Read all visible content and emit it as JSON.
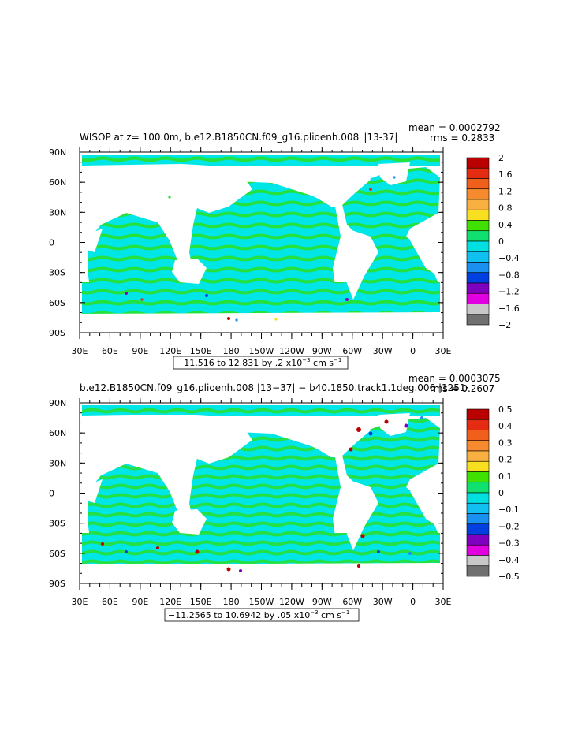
{
  "panels": [
    {
      "title": "WISOP at z= 100.0m, b.e12.B1850CN.f09_g16.plioenh.008   |13-37|",
      "mean_text": "mean = 0.0002792",
      "rms_text": "rms = 0.2833",
      "range_text_main": "−11.516 to 12.831 by .2 x10",
      "range_exp": "−3",
      "range_unit": " cm s",
      "range_unit_exp": "−1",
      "lat_labels": [
        "90N",
        "60N",
        "30N",
        "0",
        "30S",
        "60S",
        "90S"
      ],
      "lon_labels": [
        "30E",
        "60E",
        "90E",
        "120E",
        "150E",
        "180",
        "150W",
        "120W",
        "90W",
        "60W",
        "30W",
        "0",
        "30E"
      ],
      "colorbar_labels": [
        "2",
        "1.6",
        "1.2",
        "0.8",
        "0.4",
        "0",
        "−0.4",
        "−0.8",
        "−1.2",
        "−1.6",
        "−2"
      ]
    },
    {
      "title": "b.e12.B1850CN.f09_g16.plioenh.008 |13−37| − b40.1850.track1.1deg.006 |1251·",
      "mean_text": "mean = 0.0003075",
      "rms_text": "rms = 0.2607",
      "range_text_main": "−11.2565 to 10.6942 by .05 x10",
      "range_exp": "−3",
      "range_unit": " cm s",
      "range_unit_exp": "−1",
      "lat_labels": [
        "90N",
        "60N",
        "30N",
        "0",
        "30S",
        "60S",
        "90S"
      ],
      "lon_labels": [
        "30E",
        "60E",
        "90E",
        "120E",
        "150E",
        "180",
        "150W",
        "120W",
        "90W",
        "60W",
        "30W",
        "0",
        "30E"
      ],
      "colorbar_labels": [
        "0.5",
        "0.4",
        "0.3",
        "0.2",
        "0.1",
        "0",
        "−0.1",
        "−0.2",
        "−0.3",
        "−0.4",
        "−0.5"
      ]
    }
  ],
  "colors": {
    "palette": [
      "#bb0000",
      "#e42c12",
      "#f0601c",
      "#f68a2e",
      "#f8b040",
      "#f8e020",
      "#40e000",
      "#10e070",
      "#00e0e0",
      "#10c0f0",
      "#1a90f0",
      "#0040e0",
      "#8000c0",
      "#e000e0",
      "#c8c8c8",
      "#707070"
    ],
    "ocean_main": "#00e6e6",
    "ocean_band": "#28e02a",
    "land": "#ffffff"
  },
  "chart_data": [
    {
      "type": "heatmap",
      "title": "WISOP at z= 100.0m, b.e12.B1850CN.f09_g16.plioenh.008 |13-37|",
      "x_range": [
        30,
        390
      ],
      "y_range": [
        -90,
        90
      ],
      "colorbar_levels": [
        2,
        1.6,
        1.2,
        0.8,
        0.4,
        0,
        -0.4,
        -0.8,
        -1.2,
        -1.6,
        -2
      ],
      "stats": {
        "mean": 0.0002792,
        "rms": 0.2833,
        "min": -11.516,
        "max": 12.831,
        "interval": 0.2
      }
    },
    {
      "type": "heatmap",
      "title": "b.e12.B1850CN.f09_g16.plioenh.008 |13-37| - b40.1850.track1.1deg.006 |1251·",
      "x_range": [
        30,
        390
      ],
      "y_range": [
        -90,
        90
      ],
      "colorbar_levels": [
        0.5,
        0.4,
        0.3,
        0.2,
        0.1,
        0,
        -0.1,
        -0.2,
        -0.3,
        -0.4,
        -0.5
      ],
      "stats": {
        "mean": 0.0003075,
        "rms": 0.2607,
        "min": -11.2565,
        "max": 10.6942,
        "interval": 0.05
      }
    }
  ]
}
